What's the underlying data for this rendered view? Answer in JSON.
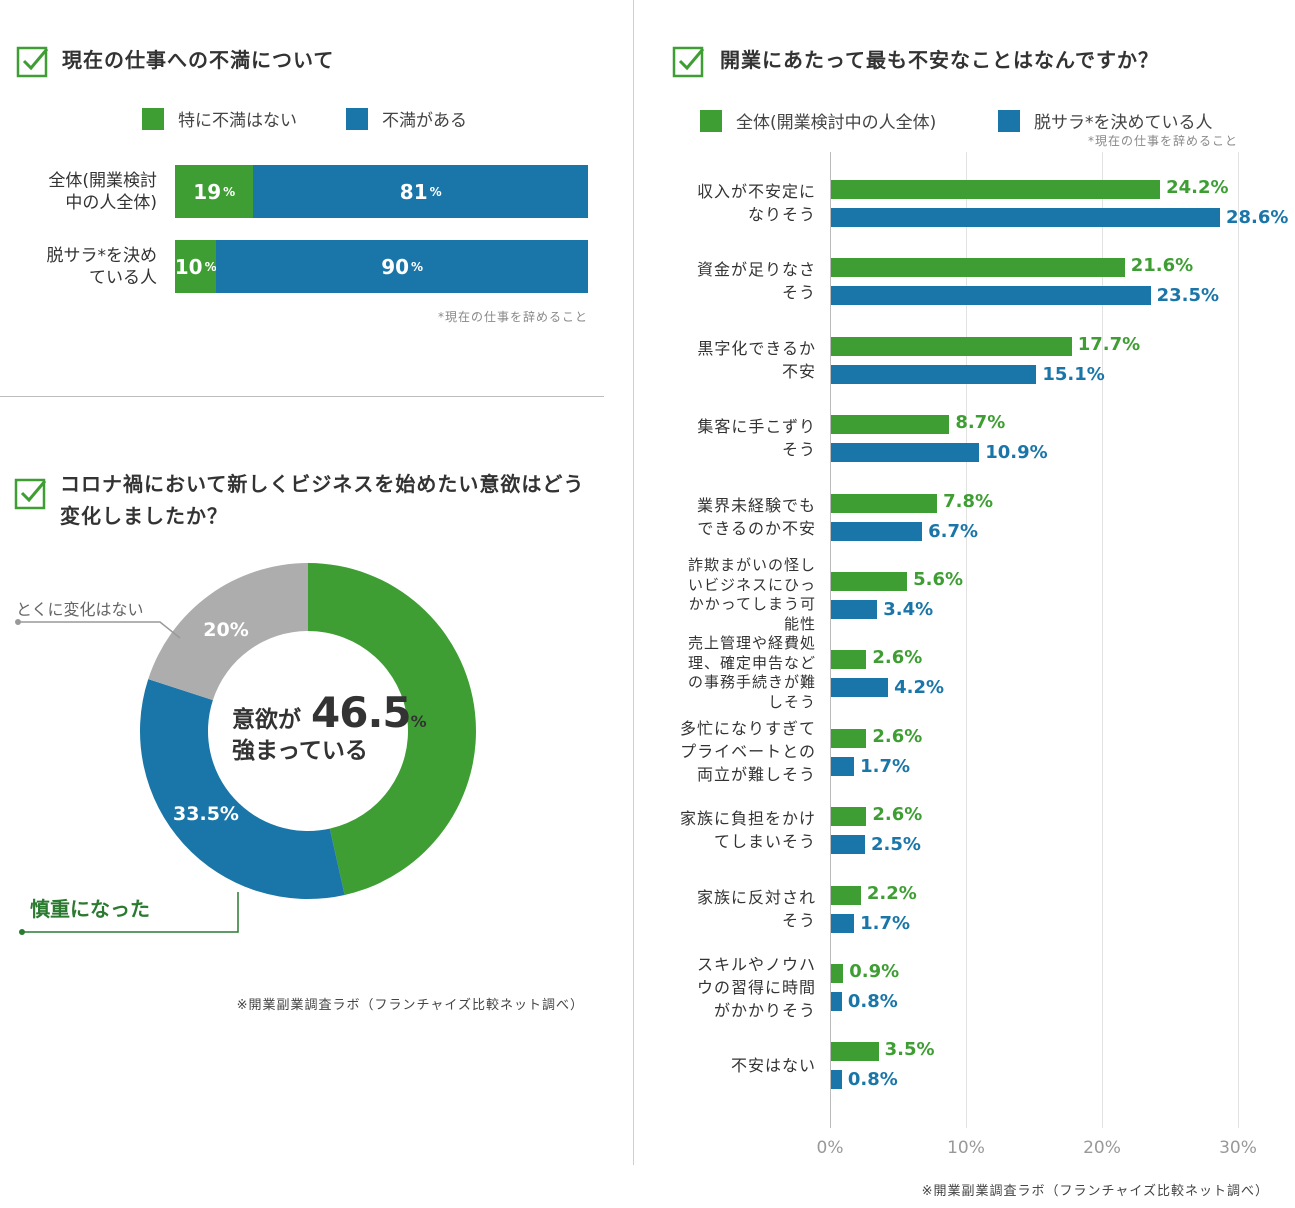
{
  "panel1": {
    "title": "現在の仕事への不満について",
    "legend": [
      "特に不満はない",
      "不満がある"
    ],
    "rows": [
      {
        "label_l1": "全体(開業検討",
        "label_l2": "中の人全体)",
        "green": 19,
        "blue": 81
      },
      {
        "label_l1": "脱サラ*を決め",
        "label_l2": "ている人",
        "green": 10,
        "blue": 90
      }
    ],
    "note": "*現在の仕事を辞めること",
    "pct": "%"
  },
  "panel2": {
    "title_l1": "コロナ禍において新しくビジネスを始めたい意欲はどう",
    "title_l2": "変化しましたか？",
    "center_l1": "意欲が",
    "center_value": "46.5",
    "center_pct": "%",
    "center_l2": "強まっている",
    "label_no_change": "とくに変化はない",
    "label_cautious": "慎重になった",
    "source": "※開業副業調査ラボ（フランチャイズ比較ネット調べ）"
  },
  "panel3": {
    "title": "開業にあたって最も不安なことはなんですか？",
    "legend": [
      "全体(開業検討中の人全体)",
      "脱サラ*を決めている人"
    ],
    "note": "*現在の仕事を辞めること",
    "source": "※開業副業調査ラボ（フランチャイズ比較ネット調べ）"
  },
  "chart_data": [
    {
      "type": "bar",
      "orientation": "horizontal",
      "stacked": true,
      "title": "現在の仕事への不満について",
      "categories": [
        "全体(開業検討中の人全体)",
        "脱サラ*を決めている人"
      ],
      "series": [
        {
          "name": "特に不満はない",
          "values": [
            19,
            10
          ],
          "color": "#3e9e33"
        },
        {
          "name": "不満がある",
          "values": [
            81,
            90
          ],
          "color": "#1a76a8"
        }
      ]
    },
    {
      "type": "pie",
      "donut": true,
      "title": "コロナ禍において新しくビジネスを始めたい意欲はどう変化しましたか？",
      "slices": [
        {
          "name": "意欲が強まっている",
          "value": 46.5,
          "label": "",
          "color": "#3e9e33"
        },
        {
          "name": "慎重になった",
          "value": 33.5,
          "label": "33.5%",
          "color": "#1a76a8"
        },
        {
          "name": "とくに変化はない",
          "value": 20,
          "label": "20%",
          "color": "#adadad"
        }
      ]
    },
    {
      "type": "bar",
      "orientation": "horizontal",
      "title": "開業にあたって最も不安なことはなんですか？",
      "xlim": [
        0,
        30
      ],
      "xticks": [
        "0%",
        "10%",
        "20%",
        "30%"
      ],
      "categories": [
        [
          "収入が不安定に",
          "なりそう"
        ],
        [
          "資金が足りなさ",
          "そう"
        ],
        [
          "黒字化できるか",
          "不安"
        ],
        [
          "集客に手こずり",
          "そう"
        ],
        [
          "業界未経験でも",
          "できるのか不安"
        ],
        [
          "詐欺まがいの怪し",
          "いビジネスにひっ",
          "かかってしまう可",
          "能性"
        ],
        [
          "売上管理や経費処",
          "理、確定申告など",
          "の事務手続きが難",
          "しそう"
        ],
        [
          "多忙になりすぎて",
          "プライベートとの",
          "両立が難しそう"
        ],
        [
          "家族に負担をかけ",
          "てしまいそう"
        ],
        [
          "家族に反対され",
          "そう"
        ],
        [
          "スキルやノウハ",
          "ウの習得に時間",
          "がかかりそう"
        ],
        [
          "不安はない"
        ]
      ],
      "series": [
        {
          "name": "全体(開業検討中の人全体)",
          "color": "#3e9e33",
          "values": [
            24.2,
            21.6,
            17.7,
            8.7,
            7.8,
            5.6,
            2.6,
            2.6,
            2.6,
            2.2,
            0.9,
            3.5
          ]
        },
        {
          "name": "脱サラ*を決めている人",
          "color": "#1a76a8",
          "values": [
            28.6,
            23.5,
            15.1,
            10.9,
            6.7,
            3.4,
            4.2,
            1.7,
            2.5,
            1.7,
            0.8,
            0.8
          ]
        }
      ]
    }
  ]
}
